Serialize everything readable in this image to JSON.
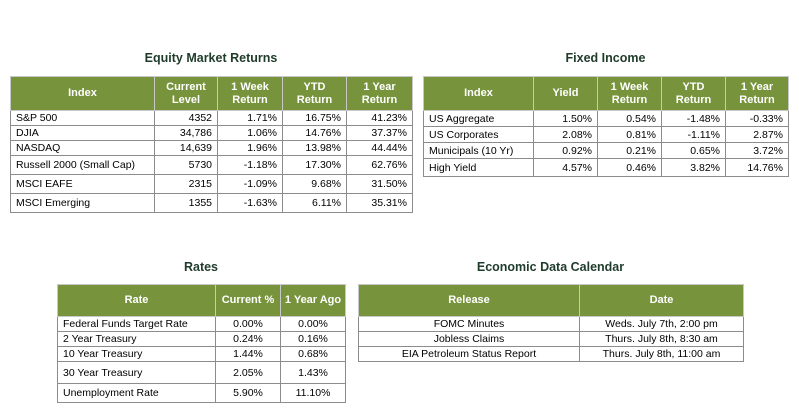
{
  "equity": {
    "title": "Equity Market Returns",
    "headers": [
      "Index",
      "Current Level",
      "1 Week Return",
      "YTD Return",
      "1 Year Return"
    ],
    "rows": [
      [
        "S&P 500",
        "4352",
        "1.71%",
        "16.75%",
        "41.23%"
      ],
      [
        "DJIA",
        "34,786",
        "1.06%",
        "14.76%",
        "37.37%"
      ],
      [
        "NASDAQ",
        "14,639",
        "1.96%",
        "13.98%",
        "44.44%"
      ],
      [
        "Russell 2000 (Small Cap)",
        "5730",
        "-1.18%",
        "17.30%",
        "62.76%"
      ],
      [
        "MSCI EAFE",
        "2315",
        "-1.09%",
        "9.68%",
        "31.50%"
      ],
      [
        "MSCI Emerging",
        "1355",
        "-1.63%",
        "6.11%",
        "35.31%"
      ]
    ]
  },
  "fixed_income": {
    "title": "Fixed Income",
    "headers": [
      "Index",
      "Yield",
      "1 Week Return",
      "YTD Return",
      "1 Year Return"
    ],
    "rows": [
      [
        "US Aggregate",
        "1.50%",
        "0.54%",
        "-1.48%",
        "-0.33%"
      ],
      [
        "US Corporates",
        "2.08%",
        "0.81%",
        "-1.11%",
        "2.87%"
      ],
      [
        "Municipals (10 Yr)",
        "0.92%",
        "0.21%",
        "0.65%",
        "3.72%"
      ],
      [
        "High Yield",
        "4.57%",
        "0.46%",
        "3.82%",
        "14.76%"
      ]
    ]
  },
  "rates": {
    "title": "Rates",
    "headers": [
      "Rate",
      "Current %",
      "1 Year Ago"
    ],
    "rows": [
      [
        "Federal Funds Target Rate",
        "0.00%",
        "0.00%"
      ],
      [
        "2 Year Treasury",
        "0.24%",
        "0.16%"
      ],
      [
        "10 Year Treasury",
        "1.44%",
        "0.68%"
      ],
      [
        "30 Year Treasury",
        "2.05%",
        "1.43%"
      ],
      [
        "Unemployment Rate",
        "5.90%",
        "11.10%"
      ]
    ]
  },
  "calendar": {
    "title": "Economic Data Calendar",
    "headers": [
      "Release",
      "Date"
    ],
    "rows": [
      [
        "FOMC Minutes",
        "Weds. July 7th, 2:00 pm"
      ],
      [
        "Jobless Claims",
        "Thurs. July 8th, 8:30 am"
      ],
      [
        "EIA Petroleum Status Report",
        "Thurs. July 8th, 11:00 am"
      ]
    ]
  },
  "colors": {
    "header_bg": "#77933c",
    "header_text": "#ffffff",
    "title_text": "#1f3b2a"
  }
}
